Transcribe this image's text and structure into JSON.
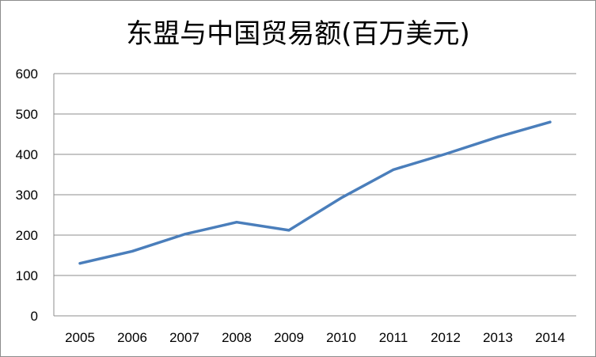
{
  "chart_data": {
    "type": "line",
    "title": "东盟与中国贸易额(百万美元)",
    "xlabel": "",
    "ylabel": "",
    "categories": [
      "2005",
      "2006",
      "2007",
      "2008",
      "2009",
      "2010",
      "2011",
      "2012",
      "2013",
      "2014"
    ],
    "series": [
      {
        "values": [
          130,
          160,
          202,
          232,
          212,
          292,
          362,
          401,
          443,
          480
        ]
      }
    ],
    "ylim": [
      0,
      600
    ],
    "yticks": [
      0,
      100,
      200,
      300,
      400,
      500,
      600
    ],
    "grid": true,
    "legend": "none",
    "colors": {
      "line": "#4a7ebb",
      "grid": "#8c8c8c",
      "axis": "#8c8c8c"
    }
  }
}
